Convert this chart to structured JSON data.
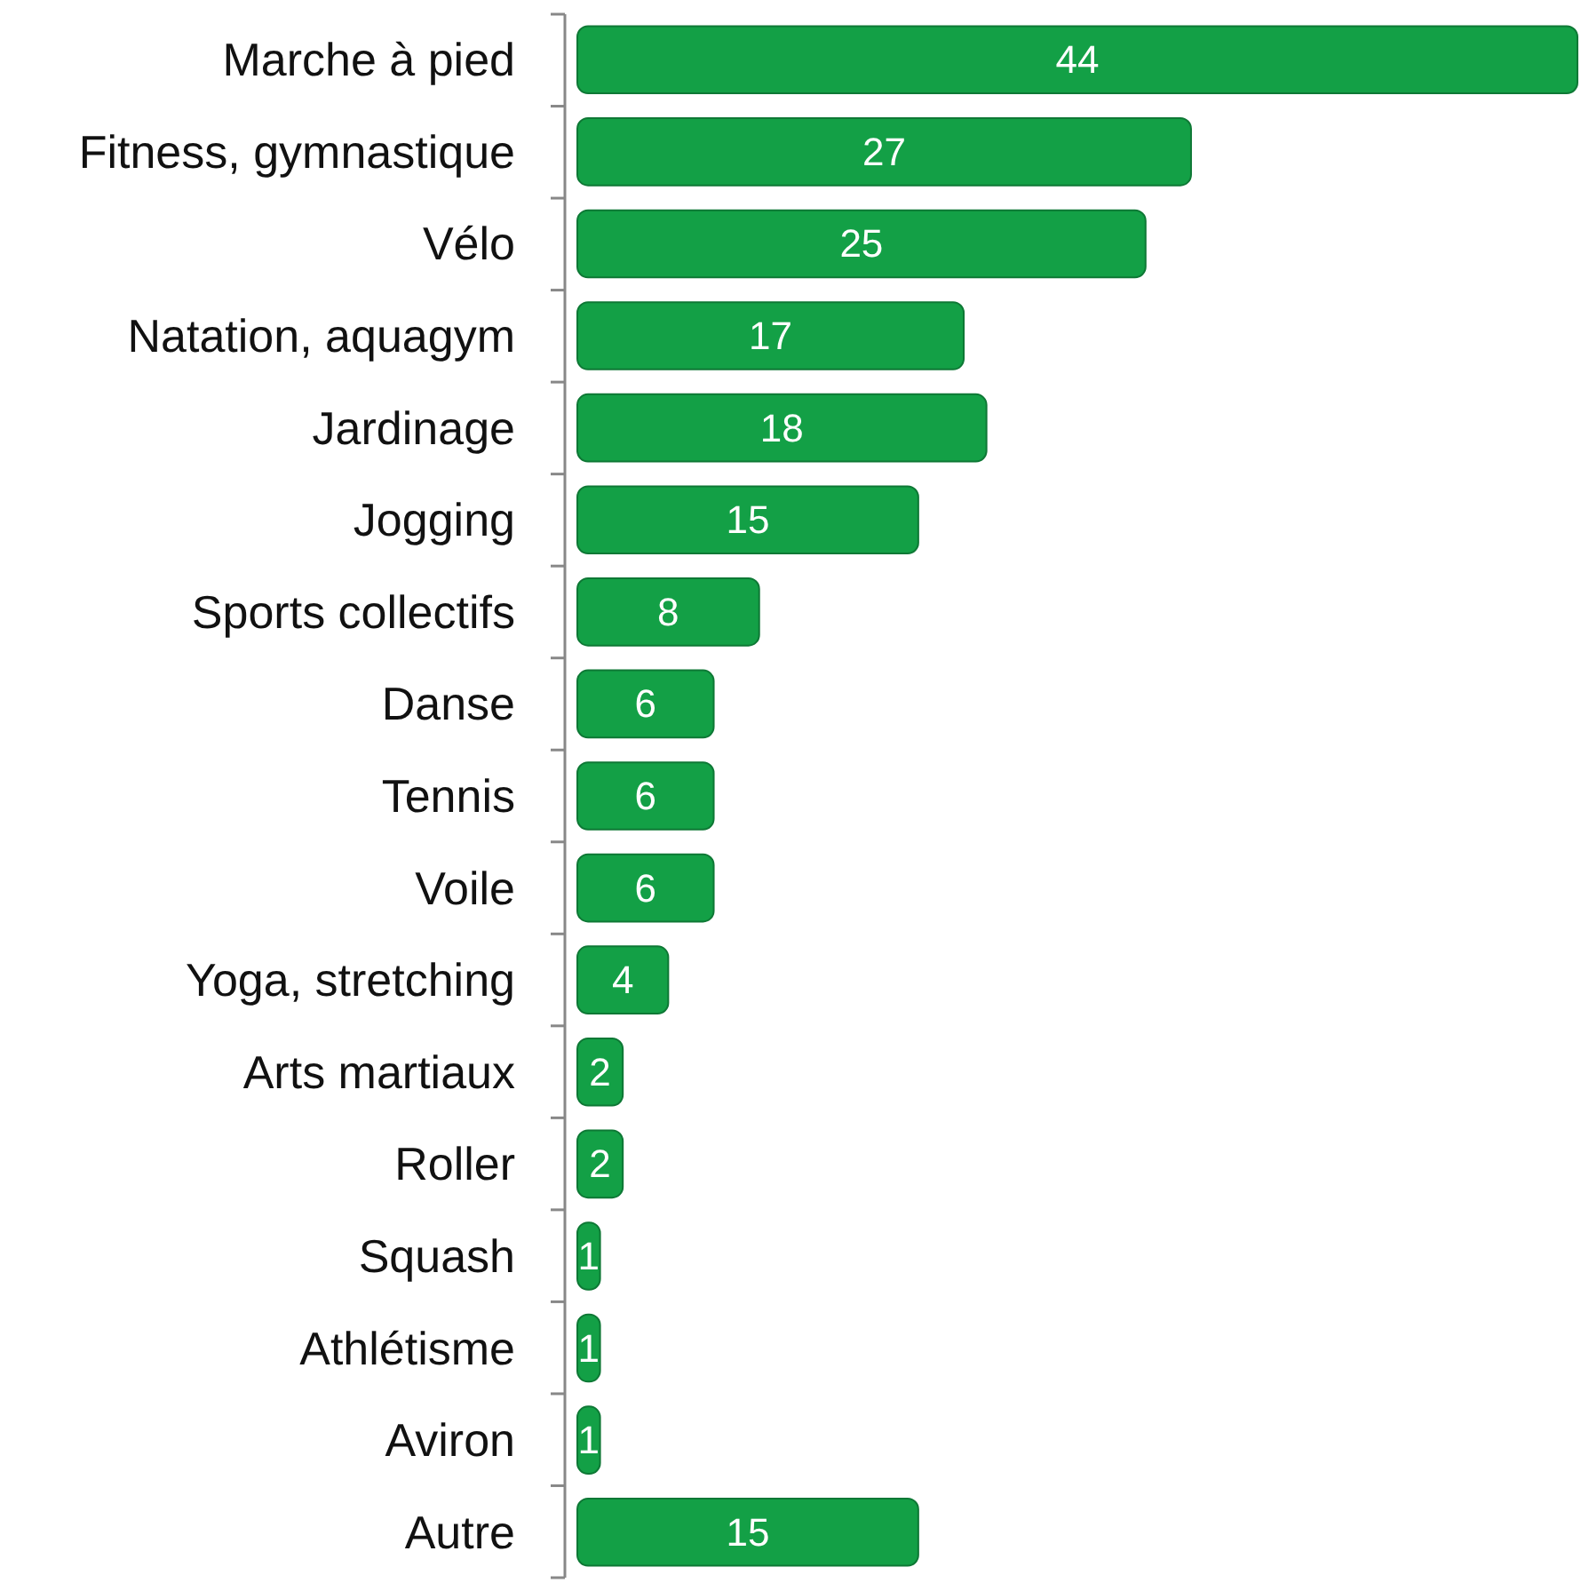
{
  "chart_data": {
    "type": "bar",
    "orientation": "horizontal",
    "categories": [
      "Marche à pied",
      "Fitness, gymnastique",
      "Vélo",
      "Natation, aquagym",
      "Jardinage",
      "Jogging",
      "Sports collectifs",
      "Danse",
      "Tennis",
      "Voile",
      "Yoga, stretching",
      "Arts martiaux",
      "Roller",
      "Squash",
      "Athlétisme",
      "Aviron",
      "Autre"
    ],
    "values": [
      44,
      27,
      25,
      17,
      18,
      15,
      8,
      6,
      6,
      6,
      4,
      2,
      2,
      1,
      1,
      1,
      15
    ],
    "color": "#13a046",
    "data_labels": true
  }
}
